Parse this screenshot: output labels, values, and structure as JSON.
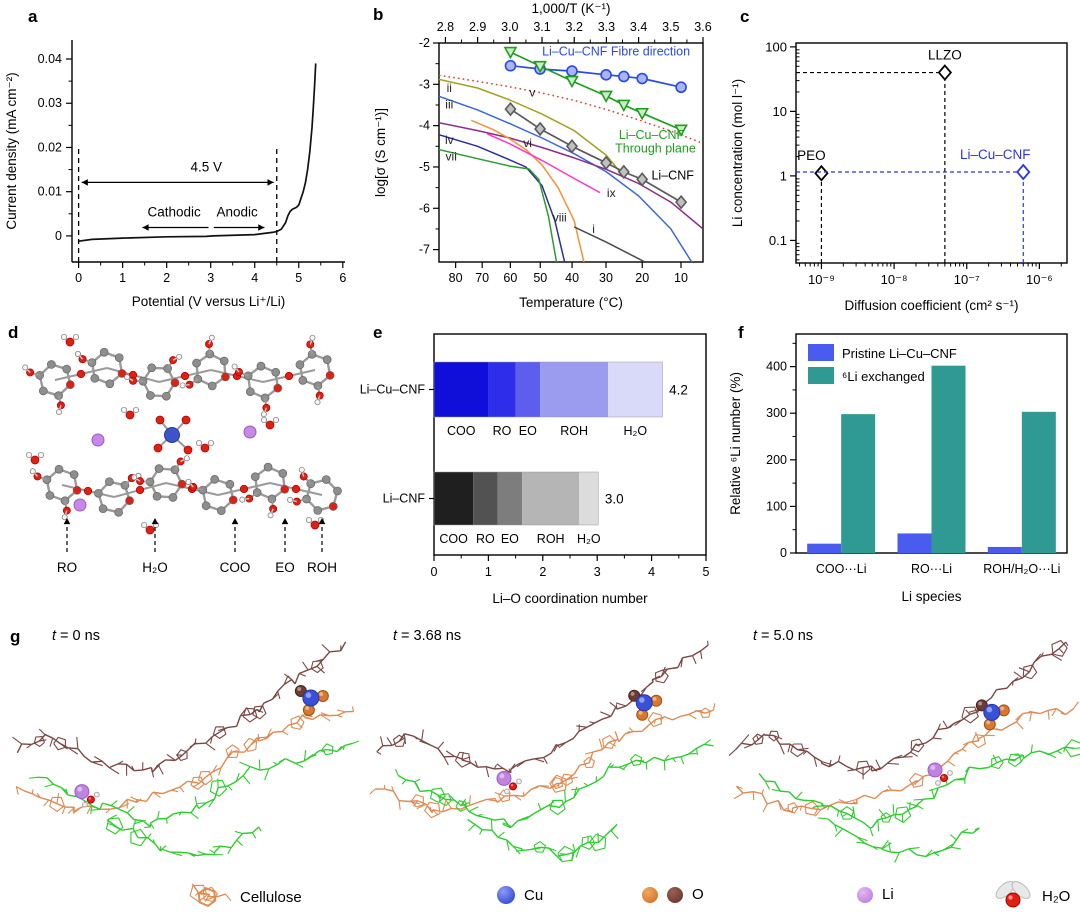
{
  "panels": {
    "a": "a",
    "b": "b",
    "c": "c",
    "d": "d",
    "e": "e",
    "f": "f",
    "g": "g"
  },
  "chart_data": [
    {
      "panel": "a",
      "type": "line",
      "xlabel": "Potential (V versus Li⁺/Li)",
      "ylabel": "Current density (mA cm⁻²)",
      "xticks": [
        0,
        1,
        2,
        3,
        4,
        5,
        6
      ],
      "yticks": [
        {
          "v": 0,
          "l": "0"
        },
        {
          "v": 0.01,
          "l": "0.01"
        },
        {
          "v": 0.02,
          "l": "0.02"
        },
        {
          "v": 0.03,
          "l": "0.03"
        },
        {
          "v": 0.04,
          "l": "0.04"
        }
      ],
      "xlim": [
        -0.15,
        6.05
      ],
      "ylim": [
        -0.0059,
        0.0443
      ],
      "line_color": "#111111",
      "annotations": {
        "range_label": "4.5 V",
        "cathodic": "Cathodic",
        "anodic": "Anodic",
        "dashed_x": [
          0,
          4.5
        ],
        "dash_top": 0.02,
        "range_arrow": {
          "x1": 0.07,
          "x2": 4.43,
          "y": 0.0121,
          "label_x": 2.9,
          "label_y": 0.0146
        },
        "cath_arrow": {
          "x1": 2.95,
          "x2": 1.45,
          "y": 0.0019,
          "text_x": 2.17,
          "text_y": 0.0053
        },
        "anod_arrow": {
          "x1": 3.07,
          "x2": 4.22,
          "y": 0.0019,
          "text_x": 3.6,
          "text_y": 0.0053
        }
      },
      "curve": [
        [
          0,
          -0.0012
        ],
        [
          0.3,
          -0.0008
        ],
        [
          1,
          -0.0005
        ],
        [
          2,
          -0.0002
        ],
        [
          2.9,
          -0.0001
        ],
        [
          3.05,
          0
        ],
        [
          4,
          0.0003
        ],
        [
          4.4,
          0.0008
        ],
        [
          4.5,
          0.001
        ],
        [
          4.6,
          0.0015
        ],
        [
          4.7,
          0.003
        ],
        [
          4.75,
          0.0045
        ],
        [
          4.8,
          0.0055
        ],
        [
          4.85,
          0.006
        ],
        [
          4.95,
          0.0065
        ],
        [
          5,
          0.007
        ],
        [
          5.05,
          0.0085
        ],
        [
          5.1,
          0.01
        ],
        [
          5.15,
          0.012
        ],
        [
          5.2,
          0.015
        ],
        [
          5.25,
          0.019
        ],
        [
          5.3,
          0.0245
        ],
        [
          5.33,
          0.029
        ],
        [
          5.36,
          0.034
        ],
        [
          5.385,
          0.039
        ]
      ]
    },
    {
      "panel": "b",
      "type": "line",
      "top_xlabel": "1,000/T (K⁻¹)",
      "bottom_xlabel": "Temperature (°C)",
      "ylabel": "log[σ (S cm⁻¹)]",
      "top_ticks": [
        2.8,
        2.9,
        3.0,
        3.1,
        3.2,
        3.3,
        3.4,
        3.5,
        3.6
      ],
      "temp_ticks": [
        80,
        70,
        60,
        50,
        40,
        30,
        20,
        10
      ],
      "yticks": [
        -2,
        -3,
        -4,
        -5,
        -6,
        -7
      ],
      "xlim": [
        2.78,
        3.6
      ],
      "ylim": [
        -7.3,
        -2
      ],
      "series": [
        {
          "id": "fibre",
          "label": "Li–Cu–CNF Fibre direction",
          "color": "#2a49e8",
          "marker": "circle",
          "marker_fill": "#a9b6f2",
          "label_pos": [
            3.33,
            -2.3
          ],
          "points": [
            [
              3.002,
              -2.55
            ],
            [
              3.094,
              -2.63
            ],
            [
              3.193,
              -2.68
            ],
            [
              3.299,
              -2.77
            ],
            [
              3.354,
              -2.81
            ],
            [
              3.411,
              -2.86
            ],
            [
              3.532,
              -3.07
            ]
          ]
        },
        {
          "id": "through",
          "label": "Li–Cu–CNF",
          "label2": "Through plane",
          "color": "#1f9e1f",
          "marker": "triangle-down",
          "marker_fill": "#c8eec8",
          "label_pos": [
            3.44,
            -4.32
          ],
          "points": [
            [
              3.002,
              -2.22
            ],
            [
              3.094,
              -2.56
            ],
            [
              3.193,
              -2.92
            ],
            [
              3.299,
              -3.28
            ],
            [
              3.354,
              -3.5
            ],
            [
              3.411,
              -3.7
            ],
            [
              3.532,
              -4.1
            ]
          ]
        },
        {
          "id": "licnf",
          "label": "Li–CNF",
          "color": "#5a5a5a",
          "marker": "diamond",
          "marker_fill": "#c0c0c0",
          "label_pos": [
            3.44,
            -5.3
          ],
          "points": [
            [
              3.002,
              -3.6
            ],
            [
              3.094,
              -4.08
            ],
            [
              3.193,
              -4.5
            ],
            [
              3.299,
              -4.9
            ],
            [
              3.354,
              -5.12
            ],
            [
              3.411,
              -5.3
            ],
            [
              3.532,
              -5.85
            ]
          ]
        }
      ],
      "curves": [
        {
          "label": "v",
          "color": "#e23b28",
          "style": "dotted",
          "label_pos": [
            3.07,
            -3.3
          ],
          "points": [
            [
              2.78,
              -2.78
            ],
            [
              2.9,
              -2.93
            ],
            [
              3.0,
              -3.06
            ],
            [
              3.1,
              -3.21
            ],
            [
              3.2,
              -3.39
            ],
            [
              3.3,
              -3.61
            ],
            [
              3.4,
              -3.86
            ],
            [
              3.5,
              -4.13
            ],
            [
              3.6,
              -4.43
            ]
          ]
        },
        {
          "label": "ii",
          "color": "#a3a11e",
          "style": "solid",
          "label_pos": [
            2.812,
            -3.18
          ],
          "points": [
            [
              2.78,
              -2.88
            ],
            [
              2.9,
              -3.09
            ],
            [
              3.0,
              -3.38
            ],
            [
              3.1,
              -3.72
            ],
            [
              3.2,
              -4.12
            ],
            [
              3.3,
              -4.72
            ],
            [
              3.34,
              -5.1
            ]
          ]
        },
        {
          "label": "iii",
          "color": "#3b66e0",
          "style": "solid",
          "label_pos": [
            2.812,
            -3.58
          ],
          "points": [
            [
              2.78,
              -3.29
            ],
            [
              2.9,
              -3.62
            ],
            [
              3.0,
              -3.95
            ],
            [
              3.1,
              -4.3
            ],
            [
              3.2,
              -4.68
            ],
            [
              3.3,
              -5.12
            ],
            [
              3.4,
              -5.7
            ],
            [
              3.5,
              -6.5
            ],
            [
              3.565,
              -7.3
            ]
          ]
        },
        {
          "label": "iv",
          "color": "#2c2f9b",
          "style": "solid",
          "label_pos": [
            2.812,
            -4.45
          ],
          "points": [
            [
              2.78,
              -4.22
            ],
            [
              2.9,
              -4.5
            ],
            [
              3.0,
              -4.83
            ],
            [
              3.05,
              -5.0
            ],
            [
              3.1,
              -5.45
            ],
            [
              3.14,
              -6.3
            ],
            [
              3.17,
              -7.3
            ]
          ]
        },
        {
          "label": "vii",
          "color": "#2f9b2f",
          "style": "solid",
          "label_pos": [
            2.818,
            -4.84
          ],
          "points": [
            [
              2.78,
              -4.58
            ],
            [
              2.9,
              -4.8
            ],
            [
              3.0,
              -4.98
            ],
            [
              3.06,
              -5.05
            ],
            [
              3.09,
              -5.3
            ],
            [
              3.12,
              -6.2
            ],
            [
              3.145,
              -7.3
            ]
          ]
        },
        {
          "label": "vi",
          "color": "#8c2d86",
          "style": "solid",
          "label_pos": [
            3.055,
            -4.52
          ],
          "points": [
            [
              2.78,
              -3.93
            ],
            [
              2.9,
              -4.12
            ],
            [
              3.0,
              -4.3
            ],
            [
              3.1,
              -4.53
            ],
            [
              3.2,
              -4.78
            ],
            [
              3.3,
              -5.06
            ],
            [
              3.4,
              -5.4
            ],
            [
              3.5,
              -5.85
            ],
            [
              3.6,
              -6.5
            ]
          ]
        },
        {
          "label": "viii",
          "color": "#f59135",
          "style": "solid",
          "label_pos": [
            3.155,
            -6.32
          ],
          "points": [
            [
              2.88,
              -3.87
            ],
            [
              2.95,
              -4.1
            ],
            [
              3.0,
              -4.32
            ],
            [
              3.05,
              -4.58
            ],
            [
              3.1,
              -4.95
            ],
            [
              3.15,
              -5.5
            ],
            [
              3.2,
              -6.3
            ],
            [
              3.23,
              -7.3
            ]
          ]
        },
        {
          "label": "ix",
          "color": "#ff35c8",
          "style": "solid",
          "label_pos": [
            3.315,
            -5.73
          ],
          "points": [
            [
              2.93,
              -4.2
            ],
            [
              3.0,
              -4.44
            ],
            [
              3.1,
              -4.84
            ],
            [
              3.2,
              -5.28
            ],
            [
              3.28,
              -5.62
            ]
          ]
        },
        {
          "label": "i",
          "color": "#4a4a4a",
          "style": "solid",
          "label_pos": [
            3.26,
            -6.6
          ],
          "points": [
            [
              3.2,
              -6.45
            ],
            [
              3.3,
              -6.82
            ],
            [
              3.42,
              -7.3
            ]
          ]
        }
      ]
    },
    {
      "panel": "c",
      "type": "scatter",
      "xlabel": "Diffusion coefficient (cm² s⁻¹)",
      "ylabel": "Li concentration (mol l⁻¹)",
      "xtick_exp": [
        -9,
        -8,
        -7,
        -6
      ],
      "xtick_labels": [
        "10⁻⁹",
        "10⁻⁸",
        "10⁻⁷",
        "10⁻⁶"
      ],
      "ytick_exp": [
        -1,
        0,
        1,
        2
      ],
      "ytick_labels": [
        "0.1",
        "1",
        "10",
        "100"
      ],
      "xlim_exp": [
        -9.35,
        -5.62
      ],
      "ylim_exp": [
        -1.35,
        2.06
      ],
      "points": [
        {
          "label": "PEO",
          "x": 1e-09,
          "y": 1.1,
          "color": "#000000",
          "guides": [
            "v"
          ]
        },
        {
          "label": "LLZO",
          "x": 5e-08,
          "y": 40,
          "color": "#000000",
          "guides": [
            "v",
            "h"
          ]
        },
        {
          "label": "Li–Cu–CNF",
          "x": 6e-07,
          "y": 1.15,
          "color": "#2a35e8",
          "guides": [
            "v",
            "h"
          ]
        }
      ]
    },
    {
      "panel": "e",
      "type": "stacked-bar-h",
      "xlabel": "Li–O coordination number",
      "xticks": [
        0,
        1,
        2,
        3,
        4,
        5
      ],
      "xlim": [
        0,
        5
      ],
      "segment_labels": [
        "COO",
        "RO",
        "EO",
        "ROH",
        "H₂O"
      ],
      "bars": [
        {
          "category": "Li–Cu–CNF",
          "total_label": "4.2",
          "values": [
            1.0,
            0.5,
            0.45,
            1.25,
            1.0
          ],
          "colors": [
            "#0f0fd9",
            "#2e2eea",
            "#5d5dee",
            "#9b9bf0",
            "#d9d9fa"
          ]
        },
        {
          "category": "Li–CNF",
          "total_label": "3.0",
          "values": [
            0.72,
            0.45,
            0.45,
            1.05,
            0.35
          ],
          "colors": [
            "#1f1f1f",
            "#525252",
            "#7d7d7d",
            "#b5b5b5",
            "#dcdcdc"
          ]
        }
      ]
    },
    {
      "panel": "f",
      "type": "bar",
      "xlabel": "Li species",
      "ylabel": "Relative ⁶Li number (%)",
      "categories": [
        "COO···Li",
        "RO···Li",
        "ROH/H₂O···Li"
      ],
      "yticks": [
        0,
        100,
        200,
        300,
        400
      ],
      "ylim": [
        0,
        470
      ],
      "series": [
        {
          "name": "Pristine Li–Cu–CNF",
          "color": "#4a5cf0",
          "values": [
            20,
            42,
            13
          ]
        },
        {
          "name": "⁶Li exchanged",
          "color": "#2f9a94",
          "values": [
            298,
            402,
            303
          ]
        }
      ]
    }
  ],
  "panel_d": {
    "labels": [
      {
        "text": "RO",
        "x": 67
      },
      {
        "text": "H₂O",
        "x": 155
      },
      {
        "text": "COO",
        "x": 235
      },
      {
        "text": "EO",
        "x": 285
      },
      {
        "text": "ROH",
        "x": 322
      }
    ],
    "atom_colors": {
      "C": "#8e8e8e",
      "O": "#e02010",
      "H": "#f5f5f5",
      "Li": "#c788e8",
      "Cu": "#3c53cc"
    }
  },
  "panel_g": {
    "times": [
      {
        "t": "t",
        "rest": " = 0 ns"
      },
      {
        "t": "t",
        "rest": " = 3.68 ns"
      },
      {
        "t": "t",
        "rest": " = 5.0 ns"
      }
    ],
    "legend": [
      {
        "label": "Cellulose"
      },
      {
        "label": "Cu"
      },
      {
        "label": "O"
      },
      {
        "label": "Li"
      },
      {
        "label": "H₂O"
      }
    ],
    "colors": {
      "cellulose_brown": "#7b4743",
      "cellulose_orange": "#de8a52",
      "cellulose_green": "#2ecc2e",
      "cu": "#3a50d9",
      "o_orange": "#d9782e",
      "o_brown": "#6e3b32",
      "li": "#c183e0",
      "water_red": "#e02010",
      "water_white": "#efefef"
    },
    "snapshots": [
      {
        "cu": [
          0.87,
          0.25
        ],
        "li": [
          0.225,
          0.64
        ]
      },
      {
        "cu": [
          0.795,
          0.27
        ],
        "li": [
          0.4,
          0.585
        ]
      },
      {
        "cu": [
          0.76,
          0.31
        ],
        "li": [
          0.6,
          0.55
        ]
      }
    ]
  }
}
